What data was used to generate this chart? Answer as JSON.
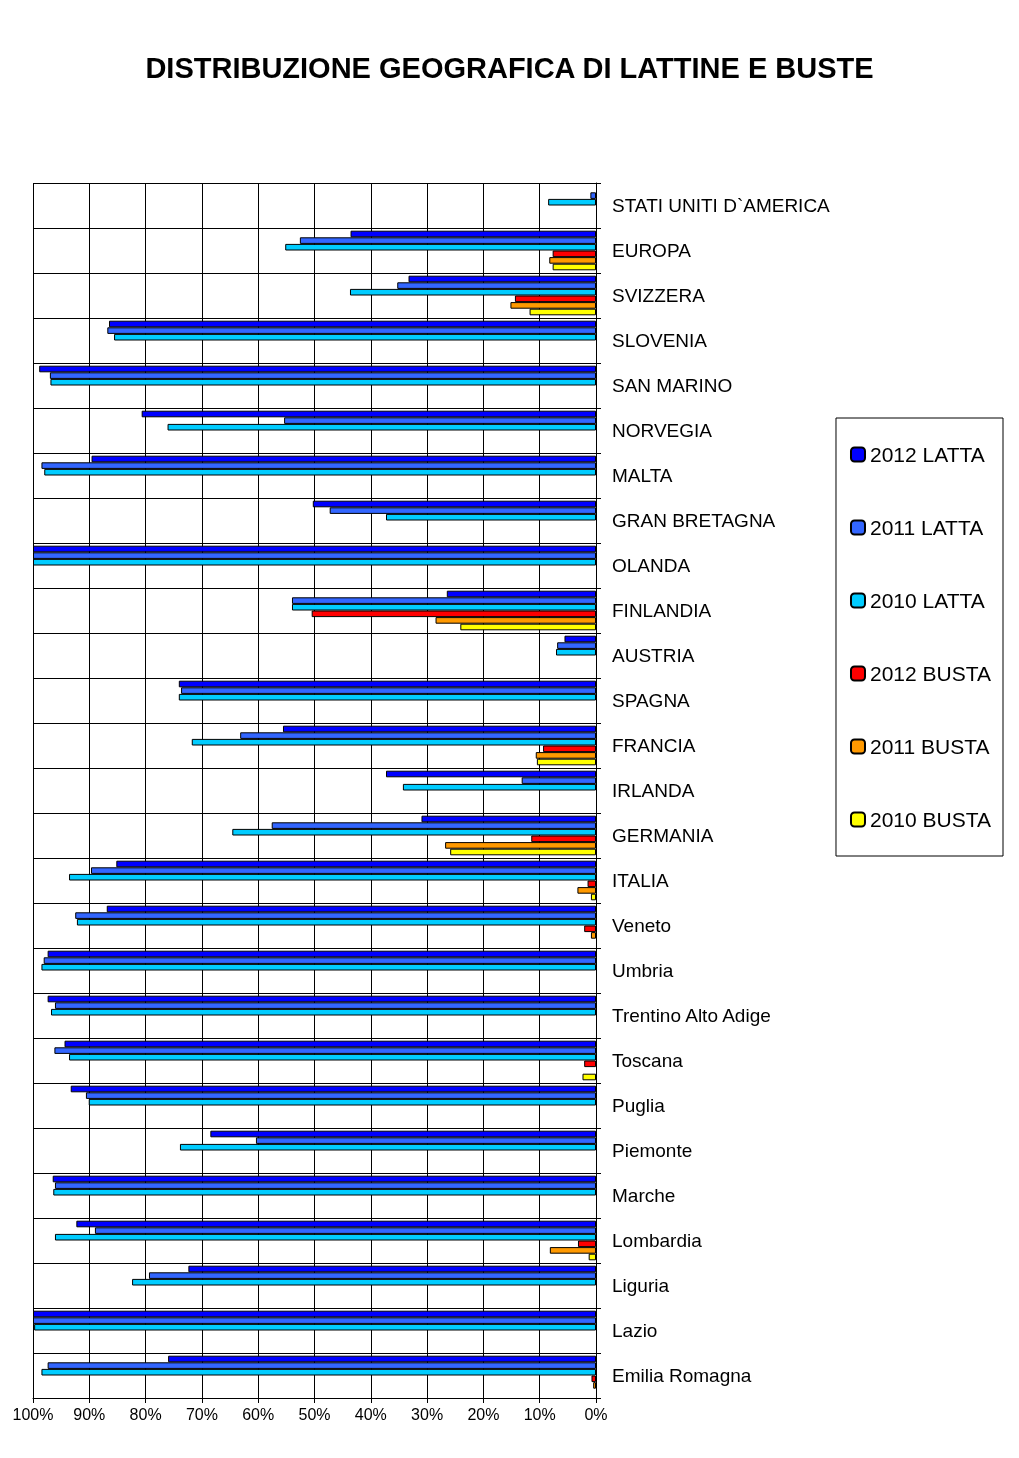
{
  "chart_data": {
    "type": "bar",
    "orientation": "horizontal",
    "title": "DISTRIBUZIONE GEOGRAFICA DI LATTINE E BUSTE",
    "categories": [
      "STATI UNITI D`AMERICA",
      "EUROPA",
      "SVIZZERA",
      "SLOVENIA",
      "SAN MARINO",
      "NORVEGIA",
      "MALTA",
      "GRAN BRETAGNA",
      "OLANDA",
      "FINLANDIA",
      "AUSTRIA",
      "SPAGNA",
      "FRANCIA",
      "IRLANDA",
      "GERMANIA",
      "ITALIA",
      "Veneto",
      "Umbria",
      "Trentino Alto Adige",
      "Toscana",
      "Puglia",
      "Piemonte",
      "Marche",
      "Lombardia",
      "Liguria",
      "Lazio",
      "Emilia Romagna"
    ],
    "series": [
      {
        "name": "2012 LATTA",
        "color": "#0000ff",
        "values": [
          null,
          43.6,
          33.3,
          86.5,
          98.9,
          80.7,
          89.6,
          50.3,
          100,
          26.5,
          5.6,
          74.1,
          55.6,
          37.3,
          31.0,
          85.2,
          86.9,
          97.4,
          97.4,
          94.4,
          93.3,
          68.5,
          96.5,
          92.3,
          72.4,
          100,
          76.0
        ]
      },
      {
        "name": "2011 LATTA",
        "color": "#3366ff",
        "values": [
          1,
          52.6,
          35.3,
          86.8,
          97.0,
          55.4,
          98.5,
          47.3,
          100,
          54.0,
          6.9,
          73.7,
          63.2,
          13.2,
          57.6,
          89.7,
          92.5,
          98.1,
          96.1,
          96.2,
          90.6,
          60.4,
          96.1,
          89.0,
          79.4,
          100,
          97.4
        ]
      },
      {
        "name": "2010 LATTA",
        "color": "#00ccff",
        "values": [
          8.5,
          55.2,
          43.7,
          85.6,
          96.9,
          76.1,
          98.0,
          37.3,
          100,
          54.0,
          7.1,
          74.1,
          71.8,
          34.3,
          64.6,
          93.6,
          92.2,
          98.5,
          96.8,
          93.6,
          90.1,
          73.9,
          96.4,
          96.1,
          82.4,
          99.8,
          98.5
        ]
      },
      {
        "name": "2012 BUSTA",
        "color": "#ff0000",
        "values": [
          null,
          7.7,
          14.4,
          null,
          null,
          null,
          null,
          null,
          null,
          50.5,
          null,
          null,
          9.4,
          null,
          11.5,
          1.5,
          2.1,
          null,
          null,
          2.1,
          null,
          null,
          null,
          3.2,
          null,
          null,
          0.8
        ]
      },
      {
        "name": "2011 BUSTA",
        "color": "#ff9900",
        "values": [
          null,
          8.3,
          15.2,
          null,
          null,
          null,
          null,
          null,
          null,
          28.5,
          null,
          null,
          10.7,
          null,
          26.8,
          3.3,
          0.9,
          null,
          null,
          null,
          null,
          null,
          null,
          8.2,
          null,
          null,
          0.5
        ]
      },
      {
        "name": "2010 BUSTA",
        "color": "#ffff00",
        "values": [
          null,
          7.7,
          11.8,
          null,
          null,
          null,
          null,
          null,
          null,
          24.1,
          null,
          null,
          10.5,
          null,
          25.9,
          0.9,
          null,
          null,
          null,
          2.4,
          null,
          null,
          null,
          1.3,
          null,
          null,
          null
        ]
      }
    ],
    "xlim": [
      100,
      0
    ],
    "xticks": [
      {
        "value": 100,
        "label": "100%"
      },
      {
        "value": 90,
        "label": "90%"
      },
      {
        "value": 80,
        "label": "80%"
      },
      {
        "value": 70,
        "label": "70%"
      },
      {
        "value": 60,
        "label": "60%"
      },
      {
        "value": 50,
        "label": "50%"
      },
      {
        "value": 40,
        "label": "40%"
      },
      {
        "value": 30,
        "label": "30%"
      },
      {
        "value": 20,
        "label": "20%"
      },
      {
        "value": 10,
        "label": "10%"
      },
      {
        "value": 0,
        "label": "0%"
      }
    ],
    "grid": true,
    "legend": "right"
  }
}
